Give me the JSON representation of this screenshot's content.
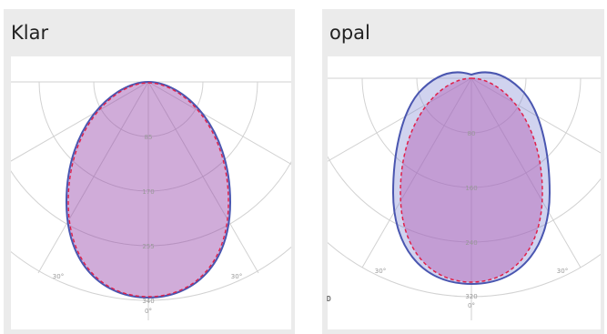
{
  "panels": [
    {
      "title": "Klar",
      "radial_labels": [
        "85",
        "170",
        "255",
        "340"
      ],
      "angle_labels": [
        "30°",
        "30°",
        "0°"
      ],
      "series": [
        {
          "kind": "outer-distribution",
          "stroke": "#4a56b0",
          "fill": "rgba(150,70,170,0.45)"
        },
        {
          "kind": "inner-distribution",
          "stroke": "#e0204a",
          "dashed": true
        }
      ]
    },
    {
      "title": "opal",
      "radial_labels": [
        "80",
        "160",
        "240",
        "320"
      ],
      "angle_labels": [
        "30°",
        "30°",
        "0°"
      ],
      "series": [
        {
          "kind": "outer-distribution",
          "stroke": "#4a56b0",
          "fill": "rgba(120,130,210,0.35)"
        },
        {
          "kind": "inner-distribution",
          "stroke": "#e0204a",
          "dashed": true,
          "fill": "rgba(180,90,180,0.45)"
        }
      ]
    }
  ],
  "stray_mark": "D",
  "colors": {
    "card_bg": "#ebebeb",
    "grid": "#d2d2d2",
    "label": "#999999"
  }
}
